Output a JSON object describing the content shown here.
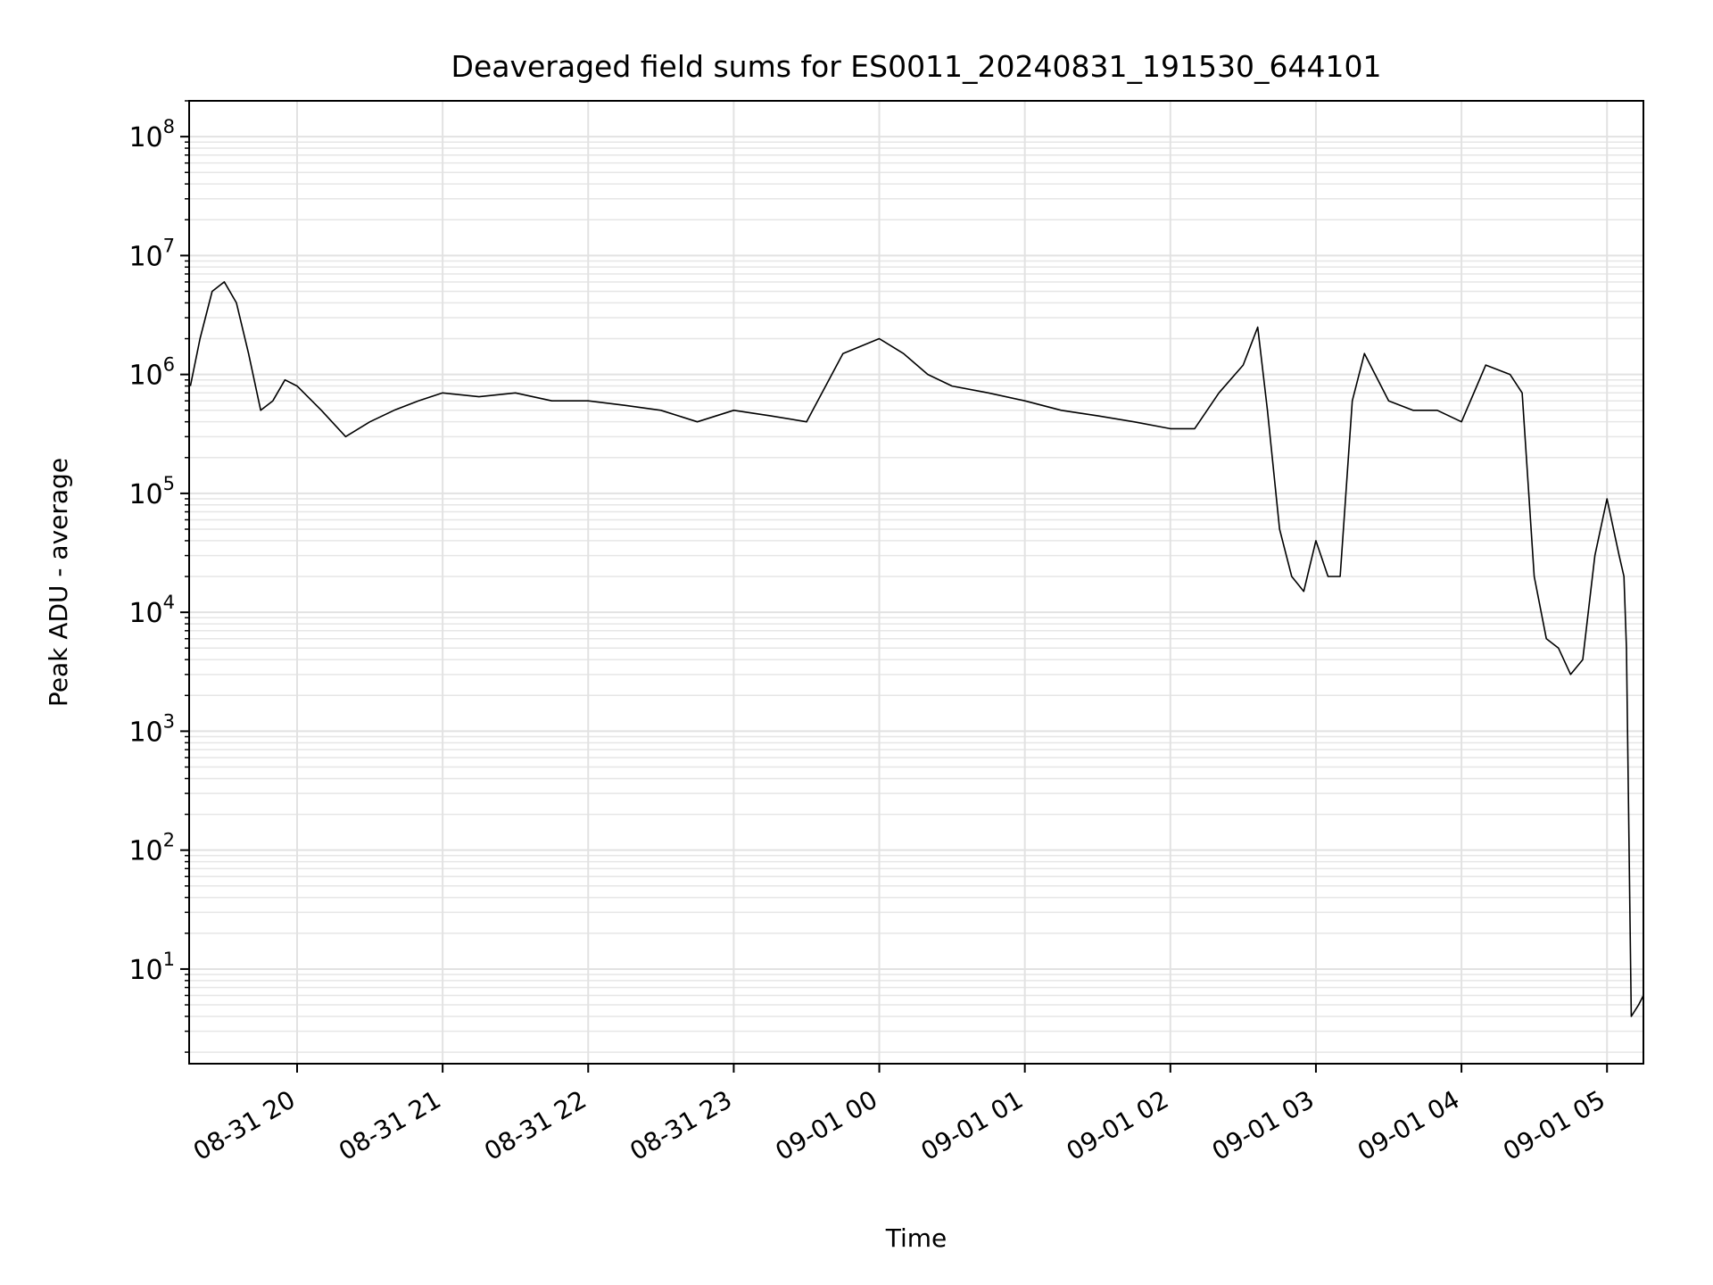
{
  "chart_data": {
    "type": "line",
    "title": "Deaveraged field sums for ES0011_20240831_191530_644101",
    "xlabel": "Time",
    "ylabel": "Peak ADU - average",
    "yscale": "log",
    "ylim": [
      1.6,
      200000000
    ],
    "xlim": [
      "2024-08-31 19:15:30",
      "2024-09-01 05:15:00"
    ],
    "grid": true,
    "line_color": "#000000",
    "x_ticks": [
      "08-31 20",
      "08-31 21",
      "08-31 22",
      "08-31 23",
      "09-01 00",
      "09-01 01",
      "09-01 02",
      "09-01 03",
      "09-01 04",
      "09-01 05"
    ],
    "x_tick_times": [
      "2024-08-31 20:00",
      "2024-08-31 21:00",
      "2024-08-31 22:00",
      "2024-08-31 23:00",
      "2024-09-01 00:00",
      "2024-09-01 01:00",
      "2024-09-01 02:00",
      "2024-09-01 03:00",
      "2024-09-01 04:00",
      "2024-09-01 05:00"
    ],
    "y_ticks": [
      {
        "base": "10",
        "exp": "1",
        "value": 10
      },
      {
        "base": "10",
        "exp": "2",
        "value": 100
      },
      {
        "base": "10",
        "exp": "3",
        "value": 1000
      },
      {
        "base": "10",
        "exp": "4",
        "value": 10000
      },
      {
        "base": "10",
        "exp": "5",
        "value": 100000
      },
      {
        "base": "10",
        "exp": "6",
        "value": 1000000
      },
      {
        "base": "10",
        "exp": "7",
        "value": 10000000
      },
      {
        "base": "10",
        "exp": "8",
        "value": 100000000
      }
    ],
    "series": [
      {
        "x": [
          "2024-08-31 19:16",
          "2024-08-31 19:20",
          "2024-08-31 19:25",
          "2024-08-31 19:30",
          "2024-08-31 19:35",
          "2024-08-31 19:40",
          "2024-08-31 19:45",
          "2024-08-31 19:50",
          "2024-08-31 19:55",
          "2024-08-31 20:00",
          "2024-08-31 20:10",
          "2024-08-31 20:20",
          "2024-08-31 20:30",
          "2024-08-31 20:40",
          "2024-08-31 20:50",
          "2024-08-31 21:00",
          "2024-08-31 21:15",
          "2024-08-31 21:30",
          "2024-08-31 21:45",
          "2024-08-31 22:00",
          "2024-08-31 22:15",
          "2024-08-31 22:30",
          "2024-08-31 22:45",
          "2024-08-31 23:00",
          "2024-08-31 23:15",
          "2024-08-31 23:30",
          "2024-08-31 23:45",
          "2024-09-01 00:00",
          "2024-09-01 00:10",
          "2024-09-01 00:20",
          "2024-09-01 00:30",
          "2024-09-01 00:45",
          "2024-09-01 01:00",
          "2024-09-01 01:15",
          "2024-09-01 01:30",
          "2024-09-01 01:45",
          "2024-09-01 02:00",
          "2024-09-01 02:10",
          "2024-09-01 02:20",
          "2024-09-01 02:30",
          "2024-09-01 02:36",
          "2024-09-01 02:40",
          "2024-09-01 02:45",
          "2024-09-01 02:50",
          "2024-09-01 02:55",
          "2024-09-01 03:00",
          "2024-09-01 03:05",
          "2024-09-01 03:10",
          "2024-09-01 03:15",
          "2024-09-01 03:20",
          "2024-09-01 03:30",
          "2024-09-01 03:40",
          "2024-09-01 03:50",
          "2024-09-01 04:00",
          "2024-09-01 04:10",
          "2024-09-01 04:20",
          "2024-09-01 04:25",
          "2024-09-01 04:30",
          "2024-09-01 04:35",
          "2024-09-01 04:40",
          "2024-09-01 04:45",
          "2024-09-01 04:50",
          "2024-09-01 04:55",
          "2024-09-01 05:00",
          "2024-09-01 05:05",
          "2024-09-01 05:07",
          "2024-09-01 05:08",
          "2024-09-01 05:10",
          "2024-09-01 05:13",
          "2024-09-01 05:15"
        ],
        "values": [
          800000,
          2000000,
          5000000,
          6000000,
          4000000,
          1500000,
          500000,
          600000,
          900000,
          800000,
          500000,
          300000,
          400000,
          500000,
          600000,
          700000,
          650000,
          700000,
          600000,
          600000,
          550000,
          500000,
          400000,
          500000,
          450000,
          400000,
          1500000,
          2000000,
          1500000,
          1000000,
          800000,
          700000,
          600000,
          500000,
          450000,
          400000,
          350000,
          350000,
          700000,
          1200000,
          2500000,
          500000,
          50000,
          20000,
          15000,
          40000,
          20000,
          20000,
          600000,
          1500000,
          600000,
          500000,
          500000,
          400000,
          1200000,
          1000000,
          700000,
          20000,
          6000,
          5000,
          3000,
          4000,
          30000,
          90000,
          30000,
          20000,
          5000,
          4,
          5,
          6
        ]
      }
    ]
  }
}
